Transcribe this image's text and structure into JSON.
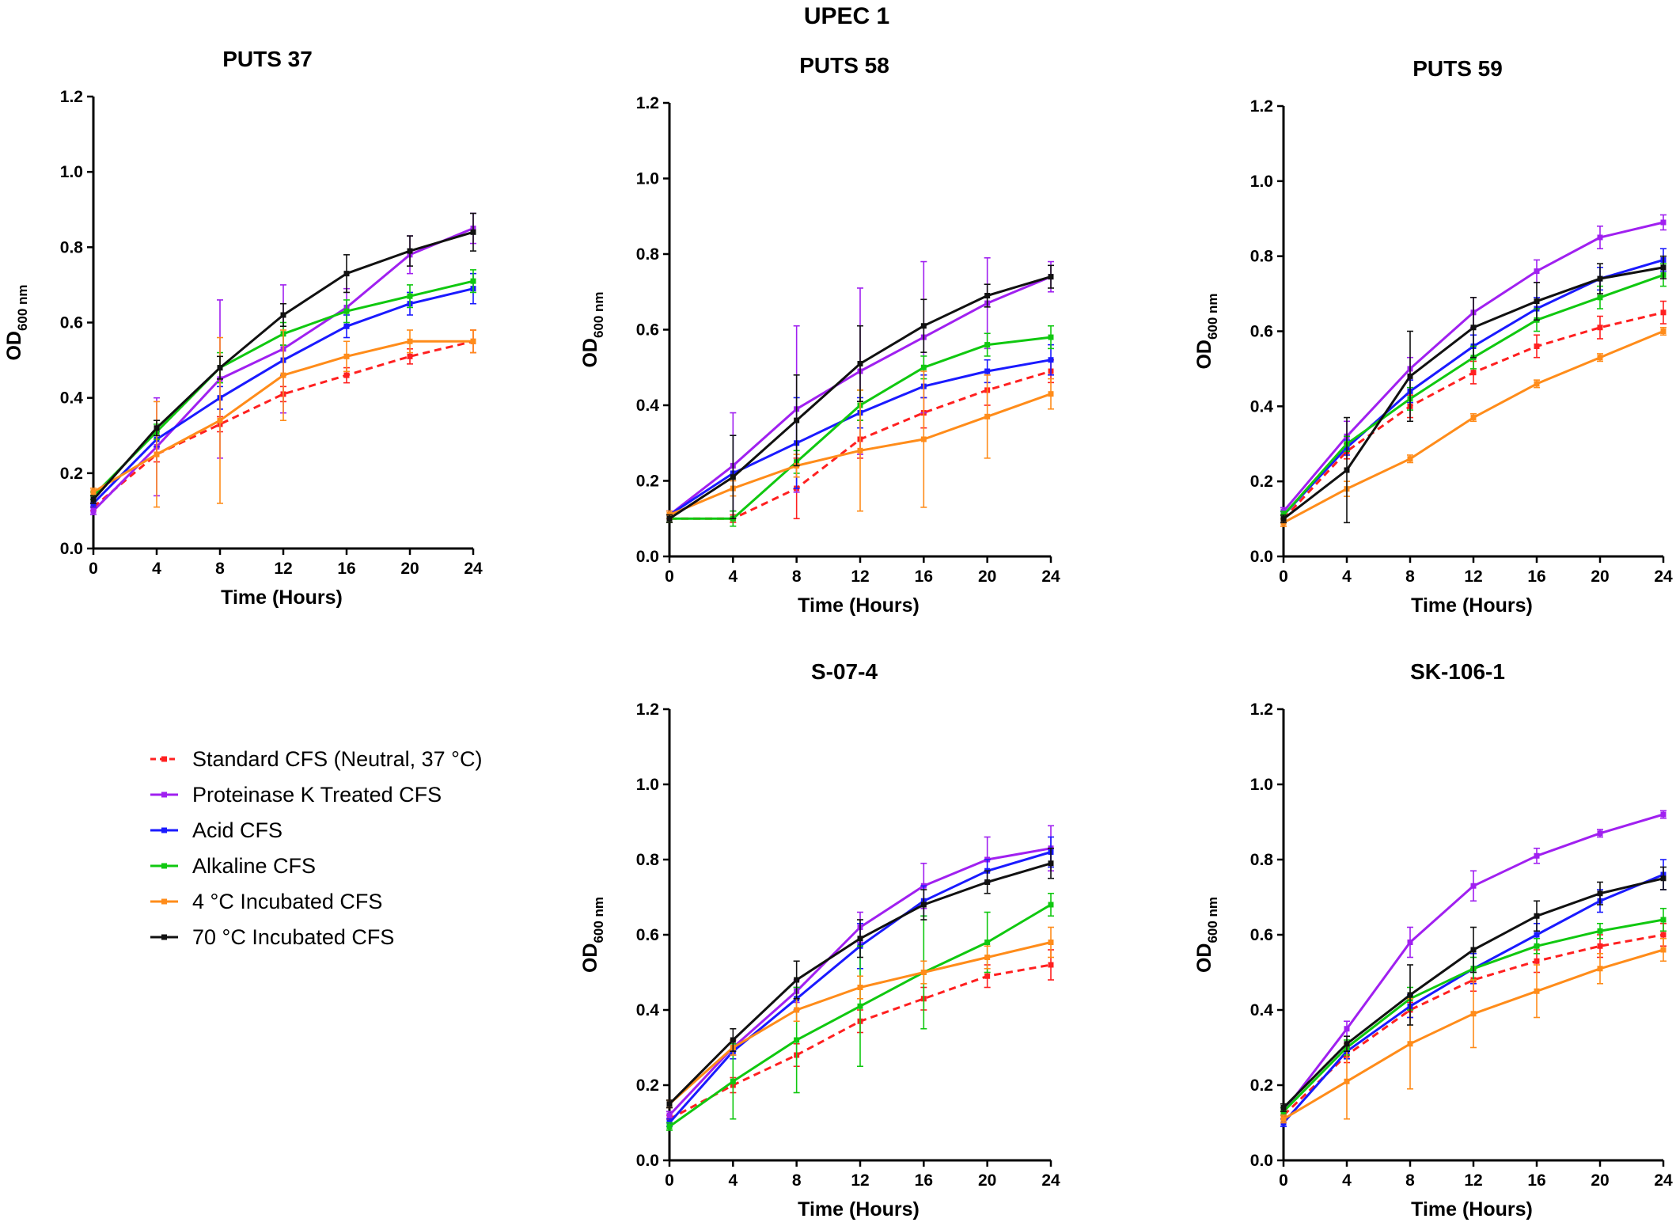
{
  "figure": {
    "title": "UPEC 1"
  },
  "legend": [
    {
      "label": "Standard CFS (Neutral, 37 °C)",
      "color": "#ff2020",
      "dashed": true
    },
    {
      "label": "Proteinase K Treated CFS",
      "color": "#a020f0",
      "dashed": false
    },
    {
      "label": "Acid CFS",
      "color": "#1a1aff",
      "dashed": false
    },
    {
      "label": "Alkaline CFS",
      "color": "#10c810",
      "dashed": false
    },
    {
      "label": "4 °C Incubated CFS",
      "color": "#ff8c1a",
      "dashed": false
    },
    {
      "label": "70 °C Incubated CFS",
      "color": "#111111",
      "dashed": false
    }
  ],
  "chart_data": [
    {
      "type": "line",
      "title": "PUTS 37",
      "xlabel": "Time (Hours)",
      "ylabel_main": "OD",
      "ylabel_sub": "600 nm",
      "x": [
        0,
        4,
        8,
        12,
        16,
        20,
        24
      ],
      "xticks": [
        "0",
        "4",
        "8",
        "12",
        "16",
        "20",
        "24"
      ],
      "yticks": [
        "0.0",
        "0.2",
        "0.4",
        "0.6",
        "0.8",
        "1.0",
        "1.2"
      ],
      "xlim": [
        0,
        24
      ],
      "ylim": [
        0,
        1.2
      ],
      "series": [
        {
          "name": "Standard CFS (Neutral, 37 °C)",
          "values": [
            0.11,
            0.25,
            0.33,
            0.41,
            0.46,
            0.51,
            0.55
          ],
          "errors": [
            0.01,
            0.02,
            0.02,
            0.02,
            0.02,
            0.02,
            0.03
          ]
        },
        {
          "name": "Proteinase K Treated CFS",
          "values": [
            0.1,
            0.27,
            0.45,
            0.53,
            0.64,
            0.78,
            0.85
          ],
          "errors": [
            0.01,
            0.13,
            0.21,
            0.17,
            0.05,
            0.05,
            0.04
          ]
        },
        {
          "name": "Acid CFS",
          "values": [
            0.12,
            0.29,
            0.4,
            0.5,
            0.59,
            0.65,
            0.69
          ],
          "errors": [
            0.01,
            0.02,
            0.03,
            0.04,
            0.03,
            0.03,
            0.04
          ]
        },
        {
          "name": "Alkaline CFS",
          "values": [
            0.14,
            0.31,
            0.48,
            0.57,
            0.63,
            0.67,
            0.71
          ],
          "errors": [
            0.01,
            0.02,
            0.04,
            0.03,
            0.03,
            0.03,
            0.03
          ]
        },
        {
          "name": "4 °C Incubated CFS",
          "values": [
            0.15,
            0.25,
            0.34,
            0.46,
            0.51,
            0.55,
            0.55
          ],
          "errors": [
            0.01,
            0.14,
            0.22,
            0.12,
            0.04,
            0.03,
            0.03
          ]
        },
        {
          "name": "70 °C Incubated CFS",
          "values": [
            0.13,
            0.32,
            0.48,
            0.62,
            0.73,
            0.79,
            0.84
          ],
          "errors": [
            0.01,
            0.02,
            0.03,
            0.03,
            0.05,
            0.04,
            0.05
          ]
        }
      ]
    },
    {
      "type": "line",
      "title": "PUTS 58",
      "xlabel": "Time (Hours)",
      "ylabel_main": "OD",
      "ylabel_sub": "600 nm",
      "x": [
        0,
        4,
        8,
        12,
        16,
        20,
        24
      ],
      "xticks": [
        "0",
        "4",
        "8",
        "12",
        "16",
        "20",
        "24"
      ],
      "yticks": [
        "0.0",
        "0.2",
        "0.4",
        "0.6",
        "0.8",
        "1.0",
        "1.2"
      ],
      "xlim": [
        0,
        24
      ],
      "ylim": [
        0,
        1.2
      ],
      "series": [
        {
          "name": "Standard CFS (Neutral, 37 °C)",
          "values": [
            0.1,
            0.1,
            0.18,
            0.31,
            0.38,
            0.44,
            0.49
          ],
          "errors": [
            0.01,
            0.01,
            0.08,
            0.05,
            0.04,
            0.04,
            0.03
          ]
        },
        {
          "name": "Proteinase K Treated CFS",
          "values": [
            0.11,
            0.24,
            0.39,
            0.49,
            0.58,
            0.67,
            0.74
          ],
          "errors": [
            0.01,
            0.14,
            0.22,
            0.22,
            0.2,
            0.12,
            0.04
          ]
        },
        {
          "name": "Acid CFS",
          "values": [
            0.11,
            0.22,
            0.3,
            0.38,
            0.45,
            0.49,
            0.52
          ],
          "errors": [
            0.01,
            0.1,
            0.12,
            0.04,
            0.03,
            0.03,
            0.04
          ]
        },
        {
          "name": "Alkaline CFS",
          "values": [
            0.1,
            0.1,
            0.25,
            0.4,
            0.5,
            0.56,
            0.58
          ],
          "errors": [
            0.01,
            0.02,
            0.03,
            0.04,
            0.03,
            0.03,
            0.03
          ]
        },
        {
          "name": "4 °C Incubated CFS",
          "values": [
            0.11,
            0.18,
            0.24,
            0.28,
            0.31,
            0.37,
            0.43
          ],
          "errors": [
            0.01,
            0.02,
            0.03,
            0.16,
            0.18,
            0.11,
            0.04
          ]
        },
        {
          "name": "70 °C Incubated CFS",
          "values": [
            0.1,
            0.21,
            0.36,
            0.51,
            0.61,
            0.69,
            0.74
          ],
          "errors": [
            0.01,
            0.11,
            0.12,
            0.1,
            0.07,
            0.03,
            0.03
          ]
        }
      ]
    },
    {
      "type": "line",
      "title": "PUTS 59",
      "xlabel": "Time (Hours)",
      "ylabel_main": "OD",
      "ylabel_sub": "600 nm",
      "x": [
        0,
        4,
        8,
        12,
        16,
        20,
        24
      ],
      "xticks": [
        "0",
        "4",
        "8",
        "12",
        "16",
        "20",
        "24"
      ],
      "yticks": [
        "0.0",
        "0.2",
        "0.4",
        "0.6",
        "0.8",
        "1.0",
        "1.2"
      ],
      "xlim": [
        0,
        24
      ],
      "ylim": [
        0,
        1.2
      ],
      "series": [
        {
          "name": "Standard CFS (Neutral, 37 °C)",
          "values": [
            0.1,
            0.28,
            0.4,
            0.49,
            0.56,
            0.61,
            0.65
          ],
          "errors": [
            0.01,
            0.02,
            0.03,
            0.03,
            0.03,
            0.03,
            0.03
          ]
        },
        {
          "name": "Proteinase K Treated CFS",
          "values": [
            0.12,
            0.32,
            0.5,
            0.65,
            0.76,
            0.85,
            0.89
          ],
          "errors": [
            0.01,
            0.04,
            0.03,
            0.04,
            0.03,
            0.03,
            0.02
          ]
        },
        {
          "name": "Acid CFS",
          "values": [
            0.11,
            0.29,
            0.44,
            0.56,
            0.66,
            0.74,
            0.79
          ],
          "errors": [
            0.01,
            0.02,
            0.03,
            0.03,
            0.03,
            0.03,
            0.03
          ]
        },
        {
          "name": "Alkaline CFS",
          "values": [
            0.11,
            0.3,
            0.42,
            0.53,
            0.63,
            0.69,
            0.75
          ],
          "errors": [
            0.01,
            0.02,
            0.03,
            0.03,
            0.03,
            0.03,
            0.03
          ]
        },
        {
          "name": "4 °C Incubated CFS",
          "values": [
            0.09,
            0.18,
            0.26,
            0.37,
            0.46,
            0.53,
            0.6
          ],
          "errors": [
            0.01,
            0.02,
            0.01,
            0.01,
            0.01,
            0.01,
            0.01
          ]
        },
        {
          "name": "70 °C Incubated CFS",
          "values": [
            0.1,
            0.23,
            0.48,
            0.61,
            0.68,
            0.74,
            0.77
          ],
          "errors": [
            0.01,
            0.14,
            0.12,
            0.08,
            0.05,
            0.04,
            0.03
          ]
        }
      ]
    },
    {
      "type": "line",
      "title": "S-07-4",
      "xlabel": "Time (Hours)",
      "ylabel_main": "OD",
      "ylabel_sub": "600 nm",
      "x": [
        0,
        4,
        8,
        12,
        16,
        20,
        24
      ],
      "xticks": [
        "0",
        "4",
        "8",
        "12",
        "16",
        "20",
        "24"
      ],
      "yticks": [
        "0.0",
        "0.2",
        "0.4",
        "0.6",
        "0.8",
        "1.0",
        "1.2"
      ],
      "xlim": [
        0,
        24
      ],
      "ylim": [
        0,
        1.2
      ],
      "series": [
        {
          "name": "Standard CFS (Neutral, 37 °C)",
          "values": [
            0.11,
            0.2,
            0.28,
            0.37,
            0.43,
            0.49,
            0.52
          ],
          "errors": [
            0.01,
            0.02,
            0.03,
            0.03,
            0.03,
            0.03,
            0.04
          ]
        },
        {
          "name": "Proteinase K Treated CFS",
          "values": [
            0.12,
            0.3,
            0.45,
            0.62,
            0.73,
            0.8,
            0.83
          ],
          "errors": [
            0.01,
            0.02,
            0.03,
            0.04,
            0.06,
            0.06,
            0.06
          ]
        },
        {
          "name": "Acid CFS",
          "values": [
            0.1,
            0.29,
            0.43,
            0.57,
            0.69,
            0.77,
            0.82
          ],
          "errors": [
            0.01,
            0.02,
            0.03,
            0.06,
            0.04,
            0.03,
            0.04
          ]
        },
        {
          "name": "Alkaline CFS",
          "values": [
            0.09,
            0.21,
            0.32,
            0.41,
            0.5,
            0.58,
            0.68
          ],
          "errors": [
            0.01,
            0.1,
            0.14,
            0.16,
            0.15,
            0.08,
            0.03
          ]
        },
        {
          "name": "4 °C Incubated CFS",
          "values": [
            0.15,
            0.3,
            0.4,
            0.46,
            0.5,
            0.54,
            0.58
          ],
          "errors": [
            0.01,
            0.02,
            0.03,
            0.03,
            0.03,
            0.03,
            0.04
          ]
        },
        {
          "name": "70 °C Incubated CFS",
          "values": [
            0.15,
            0.32,
            0.48,
            0.59,
            0.68,
            0.74,
            0.79
          ],
          "errors": [
            0.01,
            0.03,
            0.05,
            0.05,
            0.04,
            0.03,
            0.04
          ]
        }
      ]
    },
    {
      "type": "line",
      "title": "SK-106-1",
      "xlabel": "Time (Hours)",
      "ylabel_main": "OD",
      "ylabel_sub": "600 nm",
      "x": [
        0,
        4,
        8,
        12,
        16,
        20,
        24
      ],
      "xticks": [
        "0",
        "4",
        "8",
        "12",
        "16",
        "20",
        "24"
      ],
      "yticks": [
        "0.0",
        "0.2",
        "0.4",
        "0.6",
        "0.8",
        "1.0",
        "1.2"
      ],
      "xlim": [
        0,
        24
      ],
      "ylim": [
        0,
        1.2
      ],
      "series": [
        {
          "name": "Standard CFS (Neutral, 37 °C)",
          "values": [
            0.12,
            0.28,
            0.4,
            0.48,
            0.53,
            0.57,
            0.6
          ],
          "errors": [
            0.01,
            0.02,
            0.02,
            0.03,
            0.03,
            0.03,
            0.03
          ]
        },
        {
          "name": "Proteinase K Treated CFS",
          "values": [
            0.13,
            0.35,
            0.58,
            0.73,
            0.81,
            0.87,
            0.92
          ],
          "errors": [
            0.01,
            0.02,
            0.04,
            0.04,
            0.02,
            0.01,
            0.01
          ]
        },
        {
          "name": "Acid CFS",
          "values": [
            0.1,
            0.29,
            0.41,
            0.51,
            0.6,
            0.69,
            0.76
          ],
          "errors": [
            0.01,
            0.02,
            0.03,
            0.04,
            0.03,
            0.03,
            0.04
          ]
        },
        {
          "name": "Alkaline CFS",
          "values": [
            0.13,
            0.3,
            0.43,
            0.51,
            0.57,
            0.61,
            0.64
          ],
          "errors": [
            0.01,
            0.02,
            0.03,
            0.03,
            0.02,
            0.02,
            0.03
          ]
        },
        {
          "name": "4 °C Incubated CFS",
          "values": [
            0.11,
            0.21,
            0.31,
            0.39,
            0.45,
            0.51,
            0.56
          ],
          "errors": [
            0.01,
            0.1,
            0.12,
            0.09,
            0.07,
            0.04,
            0.03
          ]
        },
        {
          "name": "70 °C Incubated CFS",
          "values": [
            0.14,
            0.31,
            0.44,
            0.56,
            0.65,
            0.71,
            0.75
          ],
          "errors": [
            0.01,
            0.02,
            0.08,
            0.06,
            0.04,
            0.03,
            0.03
          ]
        }
      ]
    }
  ]
}
